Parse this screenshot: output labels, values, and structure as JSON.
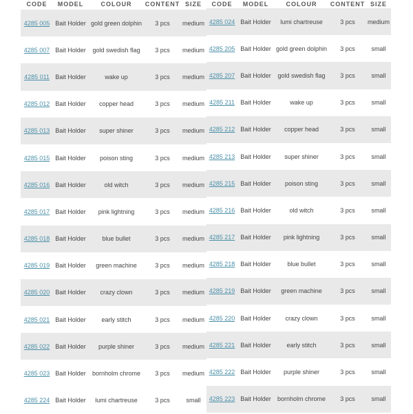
{
  "headers": [
    "CODE",
    "MODEL",
    "COLOUR",
    "CONTENT",
    "SIZE"
  ],
  "link_color": "#4a8fa8",
  "tables": [
    {
      "rows": [
        [
          "4285 005",
          "Bait Holder",
          "gold green dolphin",
          "3 pcs",
          "medium"
        ],
        [
          "4285 007",
          "Bait Holder",
          "gold swedish flag",
          "3 pcs",
          "medium"
        ],
        [
          "4285 011",
          "Bait Holder",
          "wake up",
          "3 pcs",
          "medium"
        ],
        [
          "4285 012",
          "Bait Holder",
          "copper head",
          "3 pcs",
          "medium"
        ],
        [
          "4285 013",
          "Bait Holder",
          "super shiner",
          "3 pcs",
          "medium"
        ],
        [
          "4285 015",
          "Bait Holder",
          "poison sting",
          "3 pcs",
          "medium"
        ],
        [
          "4285 016",
          "Bait Holder",
          "old witch",
          "3 pcs",
          "medium"
        ],
        [
          "4285 017",
          "Bait Holder",
          "pink lightning",
          "3 pcs",
          "medium"
        ],
        [
          "4285 018",
          "Bait Holder",
          "blue bullet",
          "3 pcs",
          "medium"
        ],
        [
          "4285 019",
          "Bait Holder",
          "green machine",
          "3 pcs",
          "medium"
        ],
        [
          "4285 020",
          "Bait Holder",
          "crazy clown",
          "3 pcs",
          "medium"
        ],
        [
          "4285 021",
          "Bait Holder",
          "early stitch",
          "3 pcs",
          "medium"
        ],
        [
          "4285 022",
          "Bait Holder",
          "purple shiner",
          "3 pcs",
          "medium"
        ],
        [
          "4285 023",
          "Bait Holder",
          "bornholm chrome",
          "3 pcs",
          "medium"
        ],
        [
          "4285 224",
          "Bait Holder",
          "lumi chartreuse",
          "3 pcs",
          "small"
        ]
      ]
    },
    {
      "rows": [
        [
          "4285 024",
          "Bait Holder",
          "lumi chartreuse",
          "3 pcs",
          "medium"
        ],
        [
          "4285 205",
          "Bait Holder",
          "gold green dolphin",
          "3 pcs",
          "small"
        ],
        [
          "4285 207",
          "Bait Holder",
          "gold swedish flag",
          "3 pcs",
          "small"
        ],
        [
          "4285 211",
          "Bait Holder",
          "wake up",
          "3 pcs",
          "small"
        ],
        [
          "4285 212",
          "Bait Holder",
          "copper head",
          "3 pcs",
          "small"
        ],
        [
          "4285 213",
          "Bait Holder",
          "super shiner",
          "3 pcs",
          "small"
        ],
        [
          "4285 215",
          "Bait Holder",
          "poison sting",
          "3 pcs",
          "small"
        ],
        [
          "4285 216",
          "Bait Holder",
          "old witch",
          "3 pcs",
          "small"
        ],
        [
          "4285 217",
          "Bait Holder",
          "pink lightning",
          "3 pcs",
          "small"
        ],
        [
          "4285 218",
          "Bait Holder",
          "blue bullet",
          "3 pcs",
          "small"
        ],
        [
          "4285 219",
          "Bait Holder",
          "green machine",
          "3 pcs",
          "small"
        ],
        [
          "4285 220",
          "Bait Holder",
          "crazy clown",
          "3 pcs",
          "small"
        ],
        [
          "4285 221",
          "Bait Holder",
          "early stitch",
          "3 pcs",
          "small"
        ],
        [
          "4285 222",
          "Bait Holder",
          "purple shiner",
          "3 pcs",
          "small"
        ],
        [
          "4285 223",
          "Bait Holder",
          "bornholm chrome",
          "3 pcs",
          "small"
        ]
      ]
    }
  ]
}
